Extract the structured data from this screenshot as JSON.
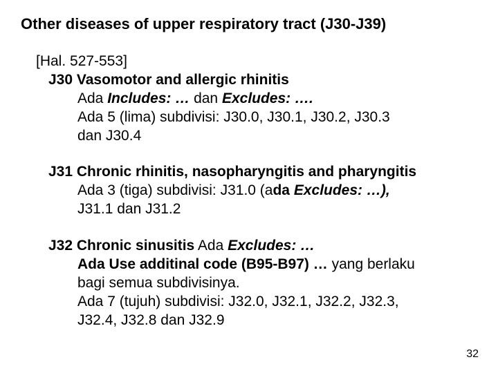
{
  "title": "Other diseases of upper respiratory tract (J30-J39)",
  "ref": "[Hal. 527-553]",
  "j30": {
    "heading": "J30 Vasomotor and allergic rhinitis",
    "l1a": "Ada ",
    "l1b": "Includes: …",
    "l1c": "  dan ",
    "l1d": "Excludes: ….",
    "l2": "Ada 5 (lima) subdivisi:  J30.0,  J30.1,  J30.2,  J30.3",
    "l3": "dan  J30.4"
  },
  "j31": {
    "heading": "J31 Chronic rhinitis, nasopharyngitis and pharyngitis",
    "l1a": "Ada 3 (tiga) subdivisi:   J31.0  (a",
    "l1b": "da ",
    "l1c": "Excludes: …),",
    "l2": "J31.1  dan  J31.2"
  },
  "j32": {
    "heading_a": "J32 Chronic sinusitis",
    "heading_b": "   Ada ",
    "heading_c": "Excludes: …",
    "l1a": "Ada Use additinal code (B95-B97) …",
    "l1b": "  yang berlaku",
    "l2": " bagi semua subdivisinya.",
    "l3": "Ada 7 (tujuh) subdivisi:  J32.0,  J32.1,  J32.2,  J32.3,",
    "l4": "J32.4, J32.8  dan  J32.9"
  },
  "pagenum": "32"
}
